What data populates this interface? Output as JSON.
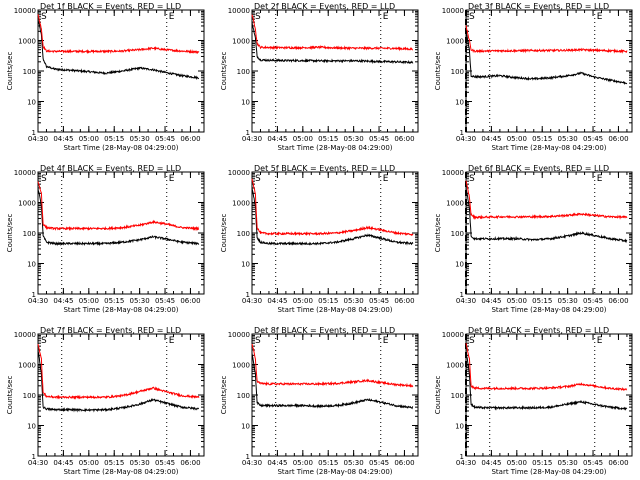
{
  "figure": {
    "background": "#ffffff",
    "axis_color": "#000000",
    "events_color": "#000000",
    "lld_color": "#ff0000"
  },
  "chart_data": [
    {
      "type": "line",
      "title": "Det 1f BLACK = Events, RED = LLD",
      "xlabel": "Start Time (28-May-08 04:29:00)",
      "ylabel": "Counts/sec",
      "y_scale": "log",
      "ylim": [
        1,
        10000
      ],
      "y_ticks": [
        "1",
        "10",
        "100",
        "1000",
        "10000"
      ],
      "xlim": [
        "04:30",
        "06:08"
      ],
      "x_ticks": [
        "04:30",
        "04:45",
        "05:00",
        "05:15",
        "05:30",
        "05:45",
        "06:00"
      ],
      "vertical_lines": [
        {
          "time": "04:44",
          "style": "dotted"
        },
        {
          "time": "05:46",
          "style": "dotted"
        }
      ],
      "corner_marks": [
        "S",
        "E"
      ],
      "series": [
        {
          "label_role": "Events",
          "color": "#000000",
          "x": [
            "04:30",
            "04:32",
            "04:33",
            "04:35",
            "04:40",
            "04:50",
            "05:00",
            "05:10",
            "05:20",
            "05:30",
            "05:38",
            "05:45",
            "05:55",
            "06:05"
          ],
          "y": [
            5000,
            1500,
            250,
            140,
            115,
            105,
            95,
            85,
            100,
            125,
            110,
            90,
            70,
            60
          ]
        },
        {
          "label_role": "LLD",
          "color": "#ff0000",
          "x": [
            "04:30",
            "04:32",
            "04:33",
            "04:35",
            "04:40",
            "04:50",
            "05:00",
            "05:10",
            "05:20",
            "05:30",
            "05:38",
            "05:45",
            "05:55",
            "06:05"
          ],
          "y": [
            7000,
            2500,
            650,
            450,
            440,
            440,
            440,
            440,
            450,
            500,
            560,
            500,
            450,
            420
          ]
        }
      ]
    },
    {
      "type": "line",
      "title": "Det 2f BLACK = Events, RED = LLD",
      "xlabel": "Start Time (28-May-08 04:29:00)",
      "ylabel": "Counts/sec",
      "y_scale": "log",
      "ylim": [
        1,
        10000
      ],
      "y_ticks": [
        "1",
        "10",
        "100",
        "1000",
        "10000"
      ],
      "xlim": [
        "04:30",
        "06:08"
      ],
      "x_ticks": [
        "04:30",
        "04:45",
        "05:00",
        "05:15",
        "05:30",
        "05:45",
        "06:00"
      ],
      "vertical_lines": [
        {
          "time": "04:44",
          "style": "dotted"
        },
        {
          "time": "05:46",
          "style": "dotted"
        }
      ],
      "corner_marks": [
        "S",
        "E"
      ],
      "series": [
        {
          "label_role": "Events",
          "color": "#000000",
          "x": [
            "04:30",
            "04:32",
            "04:33",
            "04:35",
            "04:40",
            "04:50",
            "05:00",
            "05:10",
            "05:20",
            "05:30",
            "05:38",
            "05:45",
            "05:55",
            "06:05"
          ],
          "y": [
            4000,
            1200,
            300,
            230,
            225,
            220,
            220,
            215,
            215,
            215,
            210,
            205,
            200,
            190
          ]
        },
        {
          "label_role": "LLD",
          "color": "#ff0000",
          "x": [
            "04:30",
            "04:32",
            "04:33",
            "04:35",
            "04:40",
            "04:50",
            "05:00",
            "05:10",
            "05:20",
            "05:30",
            "05:38",
            "05:45",
            "05:55",
            "06:05"
          ],
          "y": [
            7000,
            2500,
            800,
            600,
            590,
            580,
            580,
            600,
            570,
            560,
            560,
            560,
            550,
            520
          ]
        }
      ]
    },
    {
      "type": "line",
      "title": "Det 3f BLACK = Events, RED = LLD",
      "xlabel": "Start Time (28-May-08 04:29:00)",
      "ylabel": "Counts/sec",
      "y_scale": "log",
      "ylim": [
        1,
        10000
      ],
      "y_ticks": [
        "1",
        "10",
        "100",
        "1000",
        "10000"
      ],
      "xlim": [
        "04:30",
        "06:08"
      ],
      "x_ticks": [
        "04:30",
        "04:45",
        "05:00",
        "05:15",
        "05:30",
        "05:45",
        "06:00"
      ],
      "vertical_lines": [
        {
          "time": "04:30",
          "style": "dashed"
        },
        {
          "time": "04:44",
          "style": "dotted"
        },
        {
          "time": "05:46",
          "style": "dotted"
        }
      ],
      "corner_marks": [
        "S",
        "E"
      ],
      "series": [
        {
          "label_role": "Events",
          "color": "#000000",
          "x": [
            "04:30",
            "04:32",
            "04:33",
            "04:35",
            "04:40",
            "04:50",
            "05:00",
            "05:10",
            "05:20",
            "05:30",
            "05:38",
            "05:45",
            "05:55",
            "06:05"
          ],
          "y": [
            2000,
            500,
            70,
            65,
            65,
            70,
            60,
            55,
            60,
            70,
            85,
            65,
            50,
            40
          ]
        },
        {
          "label_role": "LLD",
          "color": "#ff0000",
          "x": [
            "04:30",
            "04:32",
            "04:33",
            "04:35",
            "04:40",
            "04:50",
            "05:00",
            "05:10",
            "05:20",
            "05:30",
            "05:38",
            "05:45",
            "05:55",
            "06:05"
          ],
          "y": [
            3000,
            1000,
            500,
            450,
            450,
            460,
            460,
            470,
            470,
            480,
            500,
            480,
            460,
            440
          ]
        }
      ]
    },
    {
      "type": "line",
      "title": "Det 4f BLACK = Events, RED = LLD",
      "xlabel": "Start Time (28-May-08 04:29:00)",
      "ylabel": "Counts/sec",
      "y_scale": "log",
      "ylim": [
        1,
        10000
      ],
      "y_ticks": [
        "1",
        "10",
        "100",
        "1000",
        "10000"
      ],
      "xlim": [
        "04:30",
        "06:08"
      ],
      "x_ticks": [
        "04:30",
        "04:45",
        "05:00",
        "05:15",
        "05:30",
        "05:45",
        "06:00"
      ],
      "vertical_lines": [
        {
          "time": "04:44",
          "style": "dotted"
        },
        {
          "time": "05:46",
          "style": "dotted"
        }
      ],
      "corner_marks": [
        "S",
        "E"
      ],
      "series": [
        {
          "label_role": "Events",
          "color": "#000000",
          "x": [
            "04:30",
            "04:32",
            "04:33",
            "04:35",
            "04:40",
            "04:50",
            "05:00",
            "05:10",
            "05:20",
            "05:30",
            "05:38",
            "05:45",
            "05:55",
            "06:05"
          ],
          "y": [
            3000,
            800,
            80,
            50,
            45,
            45,
            45,
            45,
            50,
            60,
            75,
            65,
            50,
            45
          ]
        },
        {
          "label_role": "LLD",
          "color": "#ff0000",
          "x": [
            "04:30",
            "04:32",
            "04:33",
            "04:35",
            "04:40",
            "04:50",
            "05:00",
            "05:10",
            "05:20",
            "05:30",
            "05:38",
            "05:45",
            "05:55",
            "06:05"
          ],
          "y": [
            5000,
            2000,
            200,
            150,
            140,
            140,
            140,
            140,
            150,
            180,
            230,
            200,
            150,
            140
          ]
        }
      ]
    },
    {
      "type": "line",
      "title": "Det 5f BLACK = Events, RED = LLD",
      "xlabel": "Start Time (28-May-08 04:29:00)",
      "ylabel": "Counts/sec",
      "y_scale": "log",
      "ylim": [
        1,
        10000
      ],
      "y_ticks": [
        "1",
        "10",
        "100",
        "1000",
        "10000"
      ],
      "xlim": [
        "04:30",
        "06:08"
      ],
      "x_ticks": [
        "04:30",
        "04:45",
        "05:00",
        "05:15",
        "05:30",
        "05:45",
        "06:00"
      ],
      "vertical_lines": [
        {
          "time": "04:44",
          "style": "dotted"
        },
        {
          "time": "05:46",
          "style": "dotted"
        }
      ],
      "corner_marks": [
        "S",
        "E"
      ],
      "series": [
        {
          "label_role": "Events",
          "color": "#000000",
          "x": [
            "04:30",
            "04:32",
            "04:33",
            "04:35",
            "04:40",
            "04:50",
            "05:00",
            "05:10",
            "05:20",
            "05:30",
            "05:38",
            "05:45",
            "05:55",
            "06:05"
          ],
          "y": [
            3000,
            800,
            70,
            50,
            45,
            45,
            45,
            45,
            50,
            65,
            85,
            70,
            50,
            45
          ]
        },
        {
          "label_role": "LLD",
          "color": "#ff0000",
          "x": [
            "04:30",
            "04:32",
            "04:33",
            "04:35",
            "04:40",
            "04:50",
            "05:00",
            "05:10",
            "05:20",
            "05:30",
            "05:38",
            "05:45",
            "05:55",
            "06:05"
          ],
          "y": [
            6000,
            2000,
            150,
            100,
            95,
            95,
            95,
            95,
            100,
            120,
            150,
            130,
            100,
            90
          ]
        }
      ]
    },
    {
      "type": "line",
      "title": "Det 6f BLACK = Events, RED = LLD",
      "xlabel": "Start Time (28-May-08 04:29:00)",
      "ylabel": "Counts/sec",
      "y_scale": "log",
      "ylim": [
        1,
        10000
      ],
      "y_ticks": [
        "1",
        "10",
        "100",
        "1000",
        "10000"
      ],
      "xlim": [
        "04:30",
        "06:08"
      ],
      "x_ticks": [
        "04:30",
        "04:45",
        "05:00",
        "05:15",
        "05:30",
        "05:45",
        "06:00"
      ],
      "vertical_lines": [
        {
          "time": "04:30",
          "style": "dashed"
        },
        {
          "time": "04:44",
          "style": "dotted"
        },
        {
          "time": "05:46",
          "style": "dotted"
        }
      ],
      "corner_marks": [
        "S",
        "E"
      ],
      "series": [
        {
          "label_role": "Events",
          "color": "#000000",
          "x": [
            "04:30",
            "04:32",
            "04:33",
            "04:35",
            "04:40",
            "04:50",
            "05:00",
            "05:10",
            "05:20",
            "05:30",
            "05:38",
            "05:45",
            "05:55",
            "06:05"
          ],
          "y": [
            3000,
            700,
            80,
            65,
            65,
            65,
            65,
            60,
            65,
            80,
            100,
            85,
            65,
            55
          ]
        },
        {
          "label_role": "LLD",
          "color": "#ff0000",
          "x": [
            "04:30",
            "04:32",
            "04:33",
            "04:35",
            "04:40",
            "04:50",
            "05:00",
            "05:10",
            "05:20",
            "05:30",
            "05:38",
            "05:45",
            "05:55",
            "06:05"
          ],
          "y": [
            5000,
            1500,
            400,
            330,
            330,
            340,
            340,
            340,
            350,
            380,
            420,
            380,
            340,
            330
          ]
        }
      ]
    },
    {
      "type": "line",
      "title": "Det 7f BLACK = Events, RED = LLD",
      "xlabel": "Start Time (28-May-08 04:29:00)",
      "ylabel": "Counts/sec",
      "y_scale": "log",
      "ylim": [
        1,
        10000
      ],
      "y_ticks": [
        "1",
        "10",
        "100",
        "1000",
        "10000"
      ],
      "xlim": [
        "04:30",
        "06:08"
      ],
      "x_ticks": [
        "04:30",
        "04:45",
        "05:00",
        "05:15",
        "05:30",
        "05:45",
        "06:00"
      ],
      "vertical_lines": [
        {
          "time": "04:44",
          "style": "dotted"
        },
        {
          "time": "05:46",
          "style": "dotted"
        }
      ],
      "corner_marks": [
        "S",
        "E"
      ],
      "series": [
        {
          "label_role": "Events",
          "color": "#000000",
          "x": [
            "04:30",
            "04:32",
            "04:33",
            "04:35",
            "04:40",
            "04:50",
            "05:00",
            "05:10",
            "05:20",
            "05:30",
            "05:38",
            "05:45",
            "05:55",
            "06:05"
          ],
          "y": [
            3000,
            500,
            40,
            35,
            33,
            33,
            32,
            33,
            38,
            50,
            70,
            55,
            40,
            35
          ]
        },
        {
          "label_role": "LLD",
          "color": "#ff0000",
          "x": [
            "04:30",
            "04:32",
            "04:33",
            "04:35",
            "04:40",
            "04:50",
            "05:00",
            "05:10",
            "05:20",
            "05:30",
            "05:38",
            "05:45",
            "05:55",
            "06:05"
          ],
          "y": [
            5000,
            1500,
            120,
            90,
            85,
            85,
            85,
            85,
            95,
            130,
            170,
            130,
            95,
            85
          ]
        }
      ]
    },
    {
      "type": "line",
      "title": "Det 8f BLACK = Events, RED = LLD",
      "xlabel": "Start Time (28-May-08 04:29:00)",
      "ylabel": "Counts/sec",
      "y_scale": "log",
      "ylim": [
        1,
        10000
      ],
      "y_ticks": [
        "1",
        "10",
        "100",
        "1000",
        "10000"
      ],
      "xlim": [
        "04:30",
        "06:08"
      ],
      "x_ticks": [
        "04:30",
        "04:45",
        "05:00",
        "05:15",
        "05:30",
        "05:45",
        "06:00"
      ],
      "vertical_lines": [
        {
          "time": "04:44",
          "style": "dotted"
        },
        {
          "time": "05:46",
          "style": "dotted"
        }
      ],
      "corner_marks": [
        "S",
        "E"
      ],
      "series": [
        {
          "label_role": "Events",
          "color": "#000000",
          "x": [
            "04:30",
            "04:32",
            "04:33",
            "04:35",
            "04:40",
            "04:50",
            "05:00",
            "05:10",
            "05:20",
            "05:30",
            "05:38",
            "05:45",
            "05:55",
            "06:05"
          ],
          "y": [
            2500,
            500,
            55,
            45,
            45,
            45,
            45,
            43,
            45,
            55,
            70,
            60,
            45,
            38
          ]
        },
        {
          "label_role": "LLD",
          "color": "#ff0000",
          "x": [
            "04:30",
            "04:32",
            "04:33",
            "04:35",
            "04:40",
            "04:50",
            "05:00",
            "05:10",
            "05:20",
            "05:30",
            "05:38",
            "05:45",
            "05:55",
            "06:05"
          ],
          "y": [
            5000,
            1500,
            280,
            240,
            230,
            230,
            230,
            230,
            240,
            270,
            300,
            260,
            220,
            200
          ]
        }
      ]
    },
    {
      "type": "line",
      "title": "Det 9f BLACK = Events, RED = LLD",
      "xlabel": "Start Time (28-May-08 04:29:00)",
      "ylabel": "Counts/sec",
      "y_scale": "log",
      "ylim": [
        1,
        10000
      ],
      "y_ticks": [
        "1",
        "10",
        "100",
        "1000",
        "10000"
      ],
      "xlim": [
        "04:30",
        "06:08"
      ],
      "x_ticks": [
        "04:30",
        "04:45",
        "05:00",
        "05:15",
        "05:30",
        "05:45",
        "06:00"
      ],
      "vertical_lines": [
        {
          "time": "04:30",
          "style": "dashed"
        },
        {
          "time": "04:44",
          "style": "dotted"
        },
        {
          "time": "05:46",
          "style": "dotted"
        }
      ],
      "corner_marks": [
        "S",
        "E"
      ],
      "series": [
        {
          "label_role": "Events",
          "color": "#000000",
          "x": [
            "04:30",
            "04:32",
            "04:33",
            "04:35",
            "04:40",
            "04:50",
            "05:00",
            "05:10",
            "05:20",
            "05:30",
            "05:38",
            "05:45",
            "05:55",
            "06:05"
          ],
          "y": [
            3000,
            500,
            50,
            40,
            38,
            38,
            38,
            38,
            40,
            50,
            60,
            50,
            40,
            35
          ]
        },
        {
          "label_role": "LLD",
          "color": "#ff0000",
          "x": [
            "04:30",
            "04:32",
            "04:33",
            "04:35",
            "04:40",
            "04:50",
            "05:00",
            "05:10",
            "05:20",
            "05:30",
            "05:38",
            "05:45",
            "05:55",
            "06:05"
          ],
          "y": [
            5000,
            1500,
            200,
            170,
            165,
            165,
            165,
            165,
            170,
            190,
            230,
            200,
            165,
            150
          ]
        }
      ]
    }
  ]
}
